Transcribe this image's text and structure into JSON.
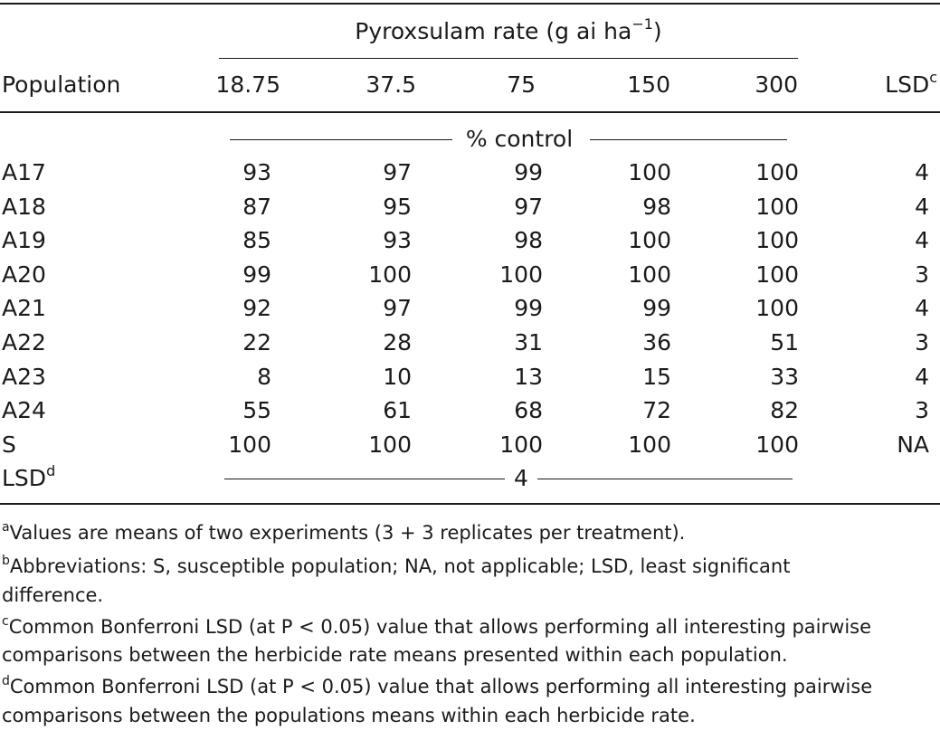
{
  "table": {
    "spanner": "Pyroxsulam rate (g ai ha",
    "spanner_sup": "−1",
    "spanner_close": ")",
    "row_header": "Population",
    "rates": [
      "18.75",
      "37.5",
      "75",
      "150",
      "300"
    ],
    "lsd_header": "LSD",
    "lsd_header_sup": "c",
    "unit_label": "% control",
    "rows": [
      {
        "pop": "A17",
        "values": [
          "93",
          "97",
          "99",
          "100",
          "100"
        ],
        "lsd": "4"
      },
      {
        "pop": "A18",
        "values": [
          "87",
          "95",
          "97",
          "98",
          "100"
        ],
        "lsd": "4"
      },
      {
        "pop": "A19",
        "values": [
          "85",
          "93",
          "98",
          "100",
          "100"
        ],
        "lsd": "4"
      },
      {
        "pop": "A20",
        "values": [
          "99",
          "100",
          "100",
          "100",
          "100"
        ],
        "lsd": "3"
      },
      {
        "pop": "A21",
        "values": [
          "92",
          "97",
          "99",
          "99",
          "100"
        ],
        "lsd": "4"
      },
      {
        "pop": "A22",
        "values": [
          "22",
          "28",
          "31",
          "36",
          "51"
        ],
        "lsd": "3"
      },
      {
        "pop": "A23",
        "values": [
          "8",
          "10",
          "13",
          "15",
          "33"
        ],
        "lsd": "4"
      },
      {
        "pop": "A24",
        "values": [
          "55",
          "61",
          "68",
          "72",
          "82"
        ],
        "lsd": "3"
      },
      {
        "pop": "S",
        "values": [
          "100",
          "100",
          "100",
          "100",
          "100"
        ],
        "lsd": "NA"
      }
    ],
    "lsd_row_label": "LSD",
    "lsd_row_sup": "d",
    "lsd_row_value": "4"
  },
  "footnotes": {
    "a_mark": "a",
    "a_text": "Values are means of two experiments (3 + 3 replicates per treatment).",
    "b_mark": "b",
    "b_line1": "Abbreviations: S, susceptible population; NA, not applicable; LSD, least significant",
    "b_line2": "difference.",
    "c_mark": "c",
    "c_line1": "Common Bonferroni LSD (at P < 0.05) value that allows performing all interesting pairwise",
    "c_line2": "comparisons between the herbicide rate means presented within each population.",
    "d_mark": "d",
    "d_line1": "Common Bonferroni LSD (at P < 0.05) value that allows performing all interesting pairwise",
    "d_line2": "comparisons between the populations means within each herbicide rate."
  }
}
